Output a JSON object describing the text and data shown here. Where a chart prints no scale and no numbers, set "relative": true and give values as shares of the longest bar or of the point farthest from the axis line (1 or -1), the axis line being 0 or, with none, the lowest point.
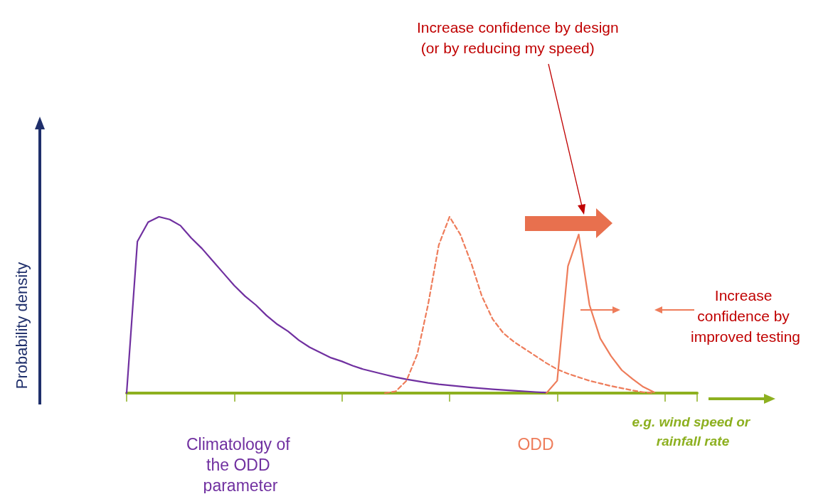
{
  "chart_data": {
    "type": "line",
    "relative": true,
    "xlabel": "e.g. wind speed or rainfall rate",
    "categories": [
      null,
      null,
      null,
      null,
      null,
      null,
      null,
      null,
      null,
      null,
      null,
      null,
      null,
      null,
      null,
      null,
      null,
      null,
      null,
      null,
      null,
      null,
      null,
      null,
      null,
      null,
      null,
      null,
      null,
      null,
      null,
      null,
      null,
      null,
      null,
      null,
      null,
      null,
      null,
      null,
      null,
      null,
      null,
      null,
      null,
      null,
      null,
      null,
      null,
      null,
      null,
      null,
      null,
      null
    ],
    "grid": false,
    "legend": false,
    "annotations": [
      "Increase confidence by design (or by reducing my speed)",
      "Increase confidence by improved testing",
      "Probability density"
    ],
    "series": [
      {
        "name": "Climatology of the ODD parameter",
        "color": "#7030a0",
        "line_style": "solid",
        "values": [
          0,
          0.86,
          0.97,
          1.0,
          0.985,
          0.95,
          0.88,
          0.82,
          0.75,
          0.68,
          0.61,
          0.55,
          0.5,
          0.44,
          0.39,
          0.35,
          0.3,
          0.26,
          0.23,
          0.2,
          0.18,
          0.155,
          0.135,
          0.12,
          0.105,
          0.09,
          0.078,
          0.068,
          0.058,
          0.05,
          0.044,
          0.038,
          0.032,
          0.027,
          0.022,
          0.018,
          0.014,
          0.01,
          0.006,
          0.003,
          null,
          null,
          null,
          null,
          null,
          null,
          null,
          null,
          null,
          null,
          null,
          null,
          null,
          null
        ]
      },
      {
        "name": "ODD",
        "color": "#ee7c5a",
        "line_style": "dashed",
        "values": [
          null,
          null,
          null,
          null,
          null,
          null,
          null,
          null,
          null,
          null,
          null,
          null,
          null,
          null,
          null,
          null,
          null,
          null,
          null,
          null,
          null,
          null,
          null,
          null,
          0,
          0.01,
          0.07,
          0.22,
          0.5,
          0.84,
          1.0,
          0.9,
          0.74,
          0.55,
          0.42,
          0.34,
          0.29,
          0.25,
          0.21,
          0.17,
          0.135,
          0.11,
          0.09,
          0.07,
          0.055,
          0.04,
          0.028,
          0.015,
          0.005,
          0,
          null,
          null,
          null,
          null
        ]
      },
      {
        "color": "#ee7c5a",
        "line_style": "solid",
        "values": [
          null,
          null,
          null,
          null,
          null,
          null,
          null,
          null,
          null,
          null,
          null,
          null,
          null,
          null,
          null,
          null,
          null,
          null,
          null,
          null,
          null,
          null,
          null,
          null,
          null,
          null,
          null,
          null,
          null,
          null,
          null,
          null,
          null,
          null,
          null,
          null,
          null,
          null,
          null,
          0,
          0.07,
          0.72,
          0.9,
          0.5,
          0.31,
          0.21,
          0.13,
          0.08,
          0.035,
          0.005,
          null,
          null,
          null,
          null
        ]
      }
    ]
  }
}
